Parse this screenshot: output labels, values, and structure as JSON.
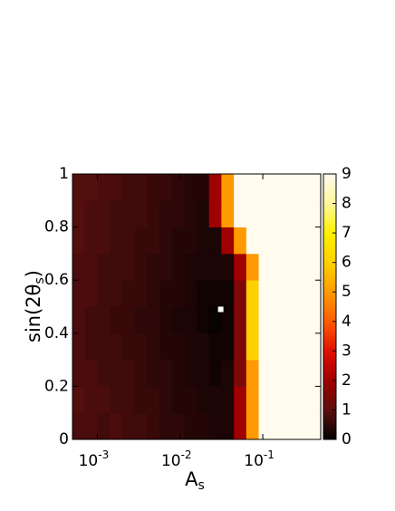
{
  "chart_data": {
    "type": "heatmap",
    "x_label": {
      "text": "A",
      "sub": "s"
    },
    "y_label": {
      "text": "sin(2θ",
      "sub": "s",
      "suffix": ")"
    },
    "log_x": true,
    "xlim": [
      0.000501,
      0.501
    ],
    "xticks": [
      {
        "value": 0.001,
        "label": "10",
        "exponent": "-3"
      },
      {
        "value": 0.01,
        "label": "10",
        "exponent": "-2"
      },
      {
        "value": 0.1,
        "label": "10",
        "exponent": "-1"
      }
    ],
    "ylim": [
      0,
      1
    ],
    "yticks": [
      0,
      0.2,
      0.4,
      0.6,
      0.8,
      1
    ],
    "xbins": [
      0.000501,
      0.000708,
      0.001,
      0.00141,
      0.002,
      0.00282,
      0.00398,
      0.00562,
      0.00794,
      0.0112,
      0.0158,
      0.0224,
      0.0316,
      0.0447,
      0.0631,
      0.0891,
      0.126,
      0.178,
      0.251,
      0.355,
      0.501
    ],
    "ybins": [
      0,
      0.1,
      0.2,
      0.3,
      0.4,
      0.5,
      0.6,
      0.7,
      0.8,
      0.9,
      1
    ],
    "z": [
      [
        0.8,
        0.8,
        0.7,
        0.8,
        0.7,
        0.7,
        0.6,
        0.5,
        0.5,
        0.4,
        0.4,
        0.3,
        0.3,
        2,
        5,
        9,
        9,
        9,
        9,
        9
      ],
      [
        0.9,
        0.8,
        0.8,
        0.7,
        0.7,
        0.6,
        0.6,
        0.5,
        0.4,
        0.4,
        0.3,
        0.3,
        0.3,
        2,
        5,
        9,
        9,
        9,
        9,
        9
      ],
      [
        0.8,
        0.8,
        0.7,
        0.7,
        0.7,
        0.6,
        0.5,
        0.5,
        0.4,
        0.3,
        0.3,
        0.2,
        0.3,
        1.5,
        5,
        9,
        9,
        9,
        9,
        9
      ],
      [
        0.8,
        0.7,
        0.7,
        0.7,
        0.6,
        0.6,
        0.5,
        0.4,
        0.4,
        0.3,
        0.3,
        0.2,
        0.2,
        1.5,
        6,
        9,
        9,
        9,
        9,
        9
      ],
      [
        0.8,
        0.7,
        0.7,
        0.6,
        0.6,
        0.5,
        0.5,
        0.4,
        0.3,
        0.3,
        0.2,
        0.1,
        0.2,
        1.5,
        6,
        9,
        9,
        9,
        9,
        9
      ],
      [
        0.8,
        0.8,
        0.7,
        0.7,
        0.6,
        0.6,
        0.5,
        0.4,
        0.4,
        0.3,
        0.2,
        0.2,
        0.2,
        1.5,
        6,
        9,
        9,
        9,
        9,
        9
      ],
      [
        0.8,
        0.8,
        0.7,
        0.7,
        0.7,
        0.6,
        0.5,
        0.5,
        0.4,
        0.3,
        0.3,
        0.3,
        0.3,
        2,
        5,
        9,
        9,
        9,
        9,
        9
      ],
      [
        0.9,
        0.8,
        0.8,
        0.7,
        0.7,
        0.6,
        0.6,
        0.5,
        0.4,
        0.4,
        0.3,
        0.3,
        2,
        5,
        9,
        9,
        9,
        9,
        9,
        9
      ],
      [
        0.9,
        0.8,
        0.8,
        0.7,
        0.7,
        0.7,
        0.6,
        0.5,
        0.5,
        0.4,
        0.3,
        2,
        5,
        9,
        9,
        9,
        9,
        9,
        9,
        9
      ],
      [
        0.9,
        0.9,
        0.8,
        0.8,
        0.7,
        0.7,
        0.6,
        0.6,
        0.5,
        0.4,
        0.4,
        2,
        5,
        9,
        9,
        9,
        9,
        9,
        9,
        9
      ]
    ],
    "clim": [
      0,
      9
    ],
    "cticks": [
      0,
      1,
      2,
      3,
      4,
      5,
      6,
      7,
      8,
      9
    ],
    "colormap": [
      "#000000",
      "#5c0f0f",
      "#a00000",
      "#e01000",
      "#ff5a00",
      "#ff9a00",
      "#ffd000",
      "#fff000",
      "#fff79a",
      "#fffbee"
    ],
    "marker": {
      "x": 0.031,
      "y": 0.49,
      "color": "#ffffff"
    }
  }
}
